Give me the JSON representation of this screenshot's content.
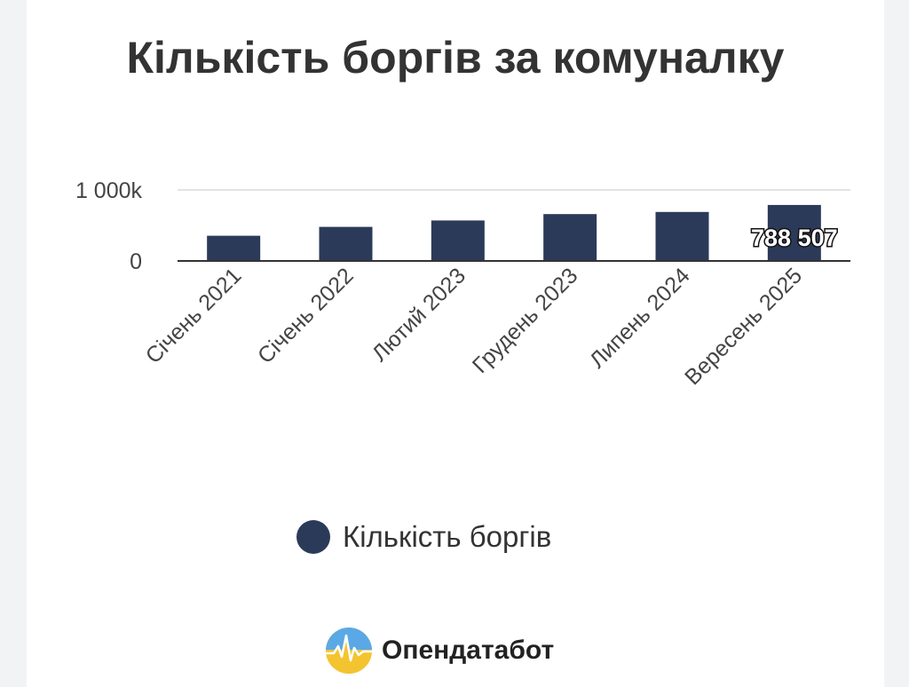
{
  "chart_data": {
    "type": "bar",
    "title": "Кількість боргів за комуналку",
    "categories": [
      "Січень 2021",
      "Січень 2022",
      "Лютий 2023",
      "Грудень 2023",
      "Липень 2024",
      "Вересень 2025"
    ],
    "series": [
      {
        "name": "Кількість боргів",
        "values": [
          355000,
          480000,
          570000,
          660000,
          690000,
          788507
        ]
      }
    ],
    "y_ticks": [
      {
        "value": 0,
        "label": "0"
      },
      {
        "value": 1000000,
        "label": "1 000k"
      }
    ],
    "ylim": [
      0,
      1000000
    ],
    "data_labels": [
      {
        "index": 5,
        "text": "788 507"
      }
    ],
    "grid": true,
    "legend": "bottom",
    "colors": {
      "bar": "#2c3a5a",
      "grid": "#e3e3e3",
      "axis": "#333333"
    }
  },
  "brand": {
    "name": "Опендатабот",
    "icon": "opendatabot-logo-icon"
  }
}
